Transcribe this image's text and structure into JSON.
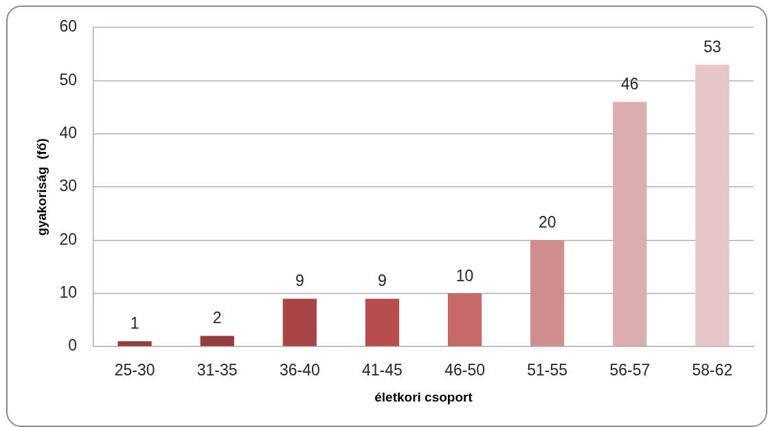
{
  "chart_data": {
    "type": "bar",
    "xlabel": "életkori csoport",
    "ylabel": "gyakoriság  (fő)",
    "categories": [
      "25-30",
      "31-35",
      "36-40",
      "41-45",
      "46-50",
      "51-55",
      "56-57",
      "58-62"
    ],
    "values": [
      1,
      2,
      9,
      9,
      10,
      20,
      46,
      53
    ],
    "colors": [
      "#953c3c",
      "#953d3d",
      "#a84646",
      "#b94d4d",
      "#c56868",
      "#d18e8e",
      "#dcadae",
      "#e6c6c7"
    ],
    "ylim": [
      0,
      60
    ],
    "yticks": [
      0,
      10,
      20,
      30,
      40,
      50,
      60
    ],
    "grid": "y",
    "data_labels": true
  }
}
